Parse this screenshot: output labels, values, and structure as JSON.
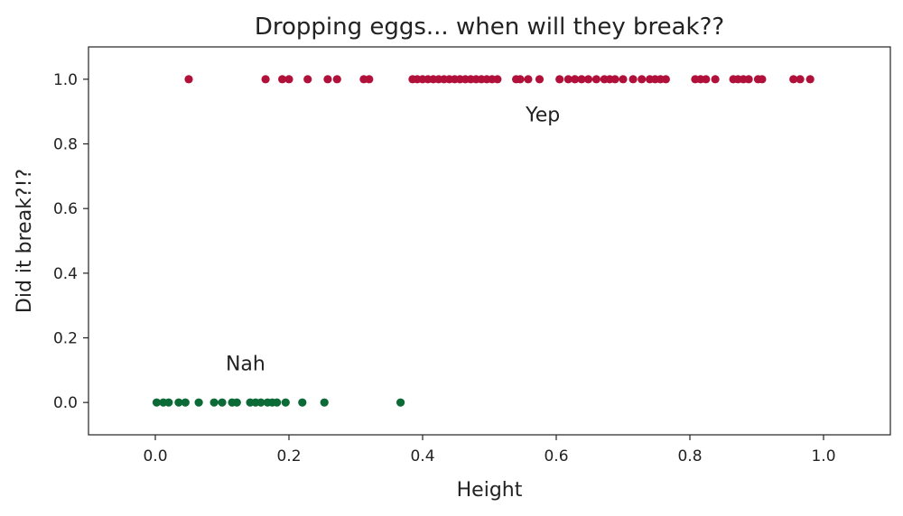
{
  "chart_data": {
    "type": "scatter",
    "title": "Dropping eggs... when will they break??",
    "xlabel": "Height",
    "ylabel": "Did it break?!?",
    "xlim": [
      -0.1,
      1.1
    ],
    "ylim": [
      -0.1,
      1.1
    ],
    "grid": false,
    "x_ticks": [
      "0.0",
      "0.2",
      "0.4",
      "0.6",
      "0.8",
      "1.0"
    ],
    "y_ticks": [
      "0.0",
      "0.2",
      "0.4",
      "0.6",
      "0.8",
      "1.0"
    ],
    "series": [
      {
        "color": "#b0103a",
        "y": 1.0,
        "x": [
          0.05,
          0.165,
          0.19,
          0.2,
          0.228,
          0.258,
          0.272,
          0.312,
          0.32,
          0.385,
          0.392,
          0.4,
          0.408,
          0.416,
          0.424,
          0.432,
          0.44,
          0.448,
          0.456,
          0.464,
          0.472,
          0.48,
          0.488,
          0.496,
          0.504,
          0.512,
          0.54,
          0.546,
          0.558,
          0.575,
          0.605,
          0.618,
          0.628,
          0.638,
          0.648,
          0.66,
          0.672,
          0.68,
          0.688,
          0.7,
          0.715,
          0.728,
          0.74,
          0.748,
          0.756,
          0.764,
          0.808,
          0.816,
          0.824,
          0.838,
          0.865,
          0.872,
          0.88,
          0.888,
          0.902,
          0.908,
          0.955,
          0.965,
          0.98
        ]
      },
      {
        "color": "#0b6a35",
        "y": 0.0,
        "x": [
          0.002,
          0.012,
          0.02,
          0.035,
          0.045,
          0.065,
          0.088,
          0.1,
          0.115,
          0.122,
          0.142,
          0.15,
          0.158,
          0.168,
          0.175,
          0.182,
          0.195,
          0.22,
          0.253,
          0.367
        ]
      }
    ],
    "annotations": [
      {
        "text": "Yep",
        "x": 0.58,
        "y": 0.87
      },
      {
        "text": "Nah",
        "x": 0.135,
        "y": 0.1
      }
    ]
  }
}
